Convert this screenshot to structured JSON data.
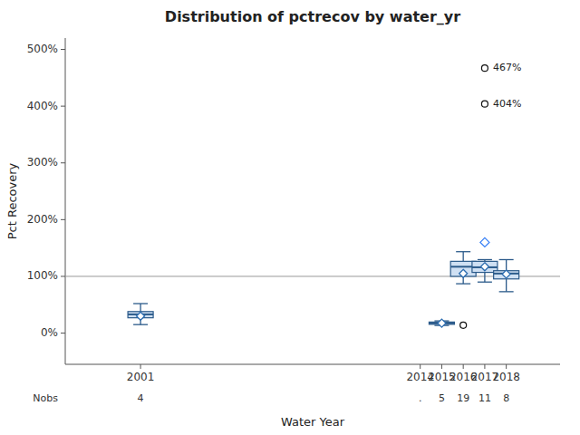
{
  "chart_data": {
    "type": "box",
    "title": "Distribution of pctrecov by water_yr",
    "x_label": "Water Year",
    "y_label": "Pct Recovery",
    "x": [
      2001,
      2014,
      2015,
      2016,
      2017,
      2018
    ],
    "xlim": [
      1997.5,
      2020.5
    ],
    "xticks": [
      2001,
      2014,
      2015,
      2016,
      2017,
      2018
    ],
    "ylim": [
      -0.55,
      5.2
    ],
    "yticks": [
      {
        "value": 0,
        "label": "0%"
      },
      {
        "value": 1,
        "label": "100%"
      },
      {
        "value": 2,
        "label": "200%"
      },
      {
        "value": 3,
        "label": "300%"
      },
      {
        "value": 4,
        "label": "400%"
      },
      {
        "value": 5,
        "label": "500%"
      }
    ],
    "grid": false,
    "reference_line": 1.0,
    "nobs_label": "Nobs",
    "nobs": [
      "4",
      ".",
      "5",
      "19",
      "11",
      "8"
    ],
    "boxes": [
      {
        "q1": 0.27,
        "median": 0.33,
        "q3": 0.38,
        "mean": 0.3,
        "whisker_low": 0.15,
        "whisker_high": 0.52,
        "fliers": [],
        "mean_fliers": []
      },
      {
        "q1": null,
        "median": null,
        "q3": null,
        "mean": null,
        "whisker_low": null,
        "whisker_high": null,
        "fliers": [],
        "mean_fliers": []
      },
      {
        "q1": 0.155,
        "median": 0.175,
        "q3": 0.195,
        "mean": 0.175,
        "whisker_low": 0.135,
        "whisker_high": 0.215,
        "fliers": [],
        "mean_fliers": []
      },
      {
        "q1": 1.0,
        "median": 1.17,
        "q3": 1.265,
        "mean": 1.05,
        "whisker_low": 0.87,
        "whisker_high": 1.435,
        "fliers": [
          0.14
        ],
        "mean_fliers": []
      },
      {
        "q1": 1.07,
        "median": 1.16,
        "q3": 1.265,
        "mean": 1.17,
        "whisker_low": 0.9,
        "whisker_high": 1.295,
        "fliers": [
          4.04,
          4.67
        ],
        "mean_fliers": [
          1.6
        ]
      },
      {
        "q1": 0.955,
        "median": 1.05,
        "q3": 1.1,
        "mean": 1.04,
        "whisker_low": 0.73,
        "whisker_high": 1.295,
        "fliers": [],
        "mean_fliers": []
      }
    ],
    "annotations": [
      {
        "text": "467%",
        "x": 2017,
        "y": 4.67
      },
      {
        "text": "404%",
        "x": 2017,
        "y": 4.04
      }
    ]
  }
}
